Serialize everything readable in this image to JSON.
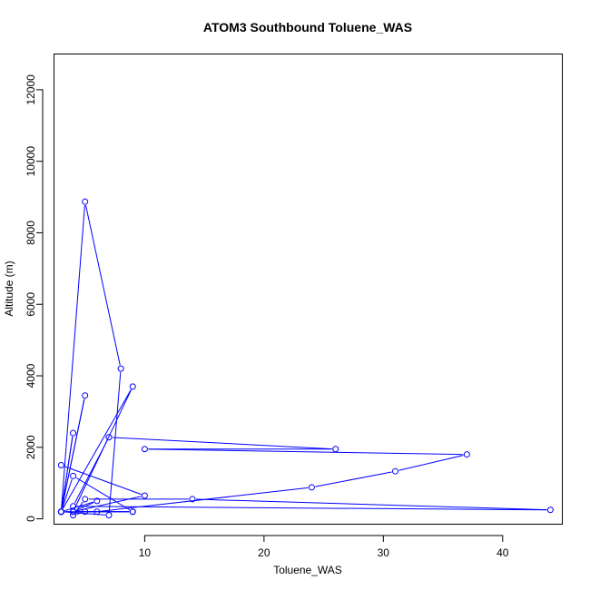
{
  "chart_data": {
    "type": "line",
    "title": "ATOM3 Southbound Toluene_WAS",
    "xlabel": "Toluene_WAS",
    "ylabel": "Altitude (m)",
    "xlim": [
      2.4,
      45
    ],
    "ylim": [
      -150,
      13000
    ],
    "xticks": [
      10,
      20,
      30,
      40
    ],
    "yticks": [
      0,
      2000,
      4000,
      6000,
      8000,
      10000,
      12000
    ],
    "grid": false,
    "legend": "none",
    "series_color": "#0000ff",
    "series": [
      {
        "points": [
          {
            "x": 3,
            "y": 1500
          },
          {
            "x": 10,
            "y": 650
          },
          {
            "x": 4,
            "y": 200
          },
          {
            "x": 3,
            "y": 200
          },
          {
            "x": 4,
            "y": 2400
          },
          {
            "x": 3,
            "y": 200
          },
          {
            "x": 5,
            "y": 3450
          },
          {
            "x": 3,
            "y": 200
          },
          {
            "x": 5,
            "y": 8870
          },
          {
            "x": 8,
            "y": 4200
          },
          {
            "x": 7,
            "y": 100
          },
          {
            "x": 3,
            "y": 200
          },
          {
            "x": 9,
            "y": 3700
          },
          {
            "x": 4,
            "y": 200
          },
          {
            "x": 9,
            "y": 200
          },
          {
            "x": 3,
            "y": 200
          },
          {
            "x": 4,
            "y": 1200
          },
          {
            "x": 9,
            "y": 200
          },
          {
            "x": 5,
            "y": 200
          },
          {
            "x": 4,
            "y": 100
          },
          {
            "x": 5,
            "y": 550
          },
          {
            "x": 14,
            "y": 550
          },
          {
            "x": 44,
            "y": 250
          },
          {
            "x": 4,
            "y": 350
          },
          {
            "x": 7,
            "y": 2280
          },
          {
            "x": 26,
            "y": 1950
          },
          {
            "x": 10,
            "y": 1950
          },
          {
            "x": 37,
            "y": 1800
          },
          {
            "x": 31,
            "y": 1330
          },
          {
            "x": 24,
            "y": 880
          },
          {
            "x": 6,
            "y": 200
          },
          {
            "x": 4,
            "y": 200
          },
          {
            "x": 6,
            "y": 500
          },
          {
            "x": 3,
            "y": 200
          }
        ]
      }
    ]
  }
}
